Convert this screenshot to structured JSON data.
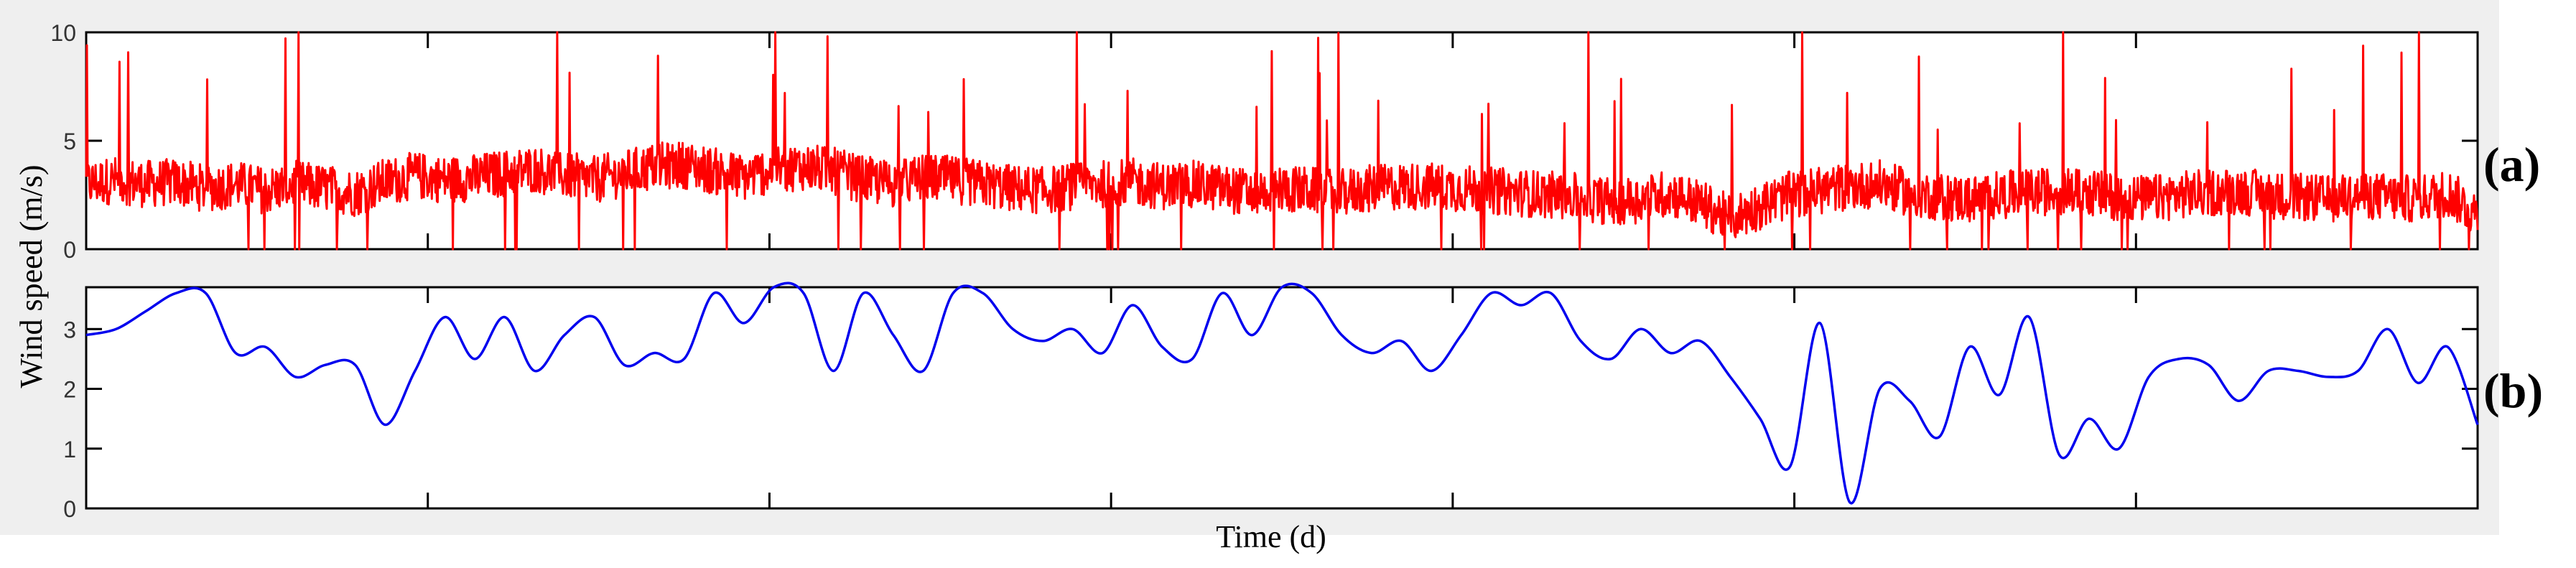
{
  "chart_data": {
    "type": "line",
    "xlabel": "Time (d)",
    "ylabel": "Wind speed (m/s)",
    "grid": false,
    "x_ticks": 7,
    "panels": [
      {
        "tag": "(a)",
        "ylim": [
          0,
          10
        ],
        "yticks": [
          0,
          5,
          10
        ],
        "series": [
          {
            "color": "#ff0000",
            "style": "noisy",
            "x": [
              0,
              1,
              2,
              3,
              4,
              5,
              6,
              7,
              8,
              9,
              10,
              11,
              12,
              13,
              14,
              15,
              16,
              17,
              18,
              19,
              20,
              21,
              22,
              23,
              24,
              25,
              26,
              27,
              28,
              29,
              30,
              31,
              32,
              33,
              34,
              35,
              36,
              37,
              38,
              39,
              40,
              41,
              42,
              43,
              44,
              45,
              46,
              47,
              48,
              49,
              50,
              51,
              52,
              53,
              54,
              55,
              56,
              57,
              58,
              59,
              60,
              61,
              62,
              63,
              64,
              65,
              66,
              67,
              68,
              69,
              70,
              71,
              72,
              73,
              74,
              75,
              76,
              77,
              78,
              79,
              80
            ],
            "values": [
              3.0,
              3.2,
              3.0,
              3.1,
              2.8,
              3.0,
              2.7,
              3.0,
              2.8,
              2.6,
              3.1,
              3.4,
              3.2,
              3.3,
              3.5,
              3.7,
              3.4,
              3.2,
              3.5,
              3.8,
              3.9,
              3.6,
              3.3,
              3.7,
              3.8,
              3.6,
              3.2,
              3.0,
              3.3,
              3.2,
              3.0,
              2.8,
              2.7,
              2.9,
              3.0,
              3.1,
              2.9,
              3.0,
              2.8,
              2.6,
              2.8,
              2.7,
              2.6,
              2.8,
              2.9,
              2.9,
              2.8,
              2.7,
              2.6,
              2.5,
              2.4,
              2.2,
              2.3,
              2.6,
              2.1,
              1.4,
              2.0,
              2.5,
              2.7,
              2.9,
              3.0,
              2.6,
              2.4,
              2.3,
              2.5,
              2.6,
              2.7,
              2.6,
              2.4,
              2.3,
              2.5,
              2.6,
              2.7,
              2.5,
              2.4,
              2.3,
              2.5,
              2.4,
              2.3,
              2.6,
              1.6
            ]
          }
        ]
      },
      {
        "tag": "(b)",
        "ylim": [
          0,
          3.7
        ],
        "yticks": [
          0,
          1,
          2,
          3
        ],
        "series": [
          {
            "color": "#0000ee",
            "style": "smooth",
            "x": [
              0,
              1,
              2,
              3,
              4,
              5,
              6,
              7,
              8,
              9,
              10,
              11,
              12,
              13,
              14,
              15,
              16,
              17,
              18,
              19,
              20,
              21,
              22,
              23,
              24,
              25,
              26,
              27,
              28,
              29,
              30,
              31,
              32,
              33,
              34,
              35,
              36,
              37,
              38,
              39,
              40,
              41,
              42,
              43,
              44,
              45,
              46,
              47,
              48,
              49,
              50,
              51,
              52,
              53,
              54,
              55,
              56,
              57,
              58,
              59,
              60,
              61,
              62,
              63,
              64,
              65,
              66,
              67,
              68,
              69,
              70,
              71,
              72,
              73,
              74,
              75,
              76,
              77,
              78,
              79,
              80
            ],
            "values": [
              2.9,
              3.0,
              3.3,
              3.6,
              3.6,
              2.6,
              2.7,
              2.2,
              2.4,
              2.4,
              1.4,
              2.3,
              3.2,
              2.5,
              3.2,
              2.3,
              2.9,
              3.2,
              2.4,
              2.6,
              2.5,
              3.6,
              3.1,
              3.7,
              3.6,
              2.3,
              3.6,
              2.9,
              2.3,
              3.6,
              3.6,
              3.0,
              2.8,
              3.0,
              2.6,
              3.4,
              2.7,
              2.5,
              3.6,
              2.9,
              3.7,
              3.6,
              2.9,
              2.6,
              2.8,
              2.3,
              2.9,
              3.6,
              3.4,
              3.6,
              2.8,
              2.5,
              3.0,
              2.6,
              2.8,
              2.2,
              1.5,
              0.7,
              3.1,
              0.1,
              2.0,
              1.8,
              1.2,
              2.7,
              1.9,
              3.2,
              0.9,
              1.5,
              1.0,
              2.2,
              2.5,
              2.4,
              1.8,
              2.3,
              2.3,
              2.2,
              2.3,
              3.0,
              2.1,
              2.7,
              1.4
            ]
          }
        ]
      }
    ]
  }
}
